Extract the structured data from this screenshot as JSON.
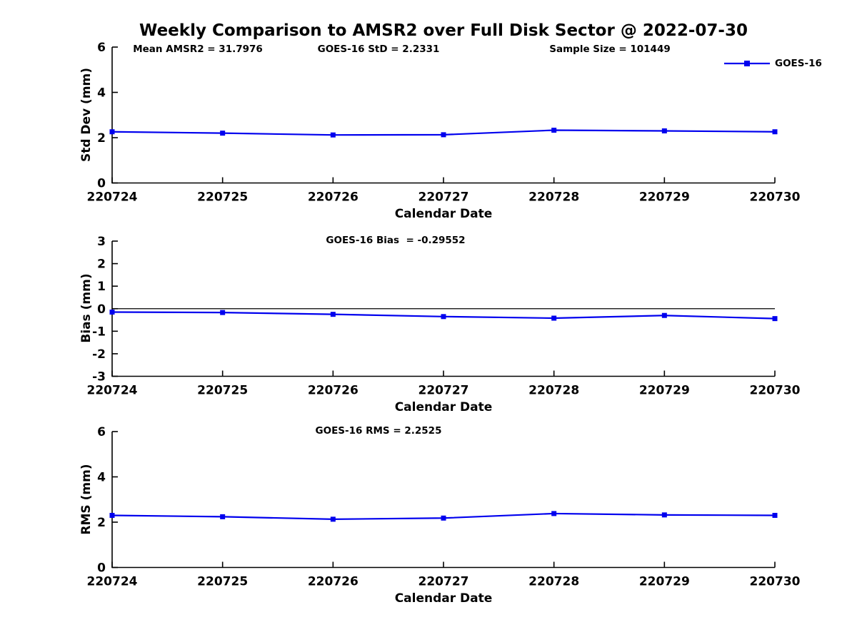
{
  "figure": {
    "title": "Weekly Comparison to AMSR2 over Full Disk Sector @ 2022-07-30"
  },
  "legend": {
    "label": "GOES-16"
  },
  "colors": {
    "series": "#0000EE",
    "axis": "#000000",
    "zero_line": "#000000",
    "text": "#000000",
    "background": "#FFFFFF"
  },
  "x_axis": {
    "label": "Calendar Date",
    "categories": [
      "220724",
      "220725",
      "220726",
      "220727",
      "220728",
      "220729",
      "220730"
    ]
  },
  "chart_data": [
    {
      "type": "line",
      "name": "std-dev",
      "ylabel": "Std Dev (mm)",
      "xlabel": "Calendar Date",
      "annotations": [
        "Mean AMSR2 = 31.7976",
        "GOES-16 StD = 2.2331",
        "Sample Size = 101449"
      ],
      "x": [
        "220724",
        "220725",
        "220726",
        "220727",
        "220728",
        "220729",
        "220730"
      ],
      "series": [
        {
          "name": "GOES-16",
          "values": [
            2.26,
            2.2,
            2.12,
            2.13,
            2.33,
            2.3,
            2.26
          ]
        }
      ],
      "ylim": [
        0,
        6
      ],
      "yticks": [
        0,
        2,
        4,
        6
      ],
      "zero_line": false,
      "grid": false,
      "legend_position": "top-right"
    },
    {
      "type": "line",
      "name": "bias",
      "ylabel": "Bias (mm)",
      "xlabel": "Calendar Date",
      "annotations": [
        "GOES-16 Bias  = -0.29552"
      ],
      "x": [
        "220724",
        "220725",
        "220726",
        "220727",
        "220728",
        "220729",
        "220730"
      ],
      "series": [
        {
          "name": "GOES-16",
          "values": [
            -0.15,
            -0.17,
            -0.25,
            -0.35,
            -0.42,
            -0.3,
            -0.44
          ]
        }
      ],
      "ylim": [
        -3,
        3
      ],
      "yticks": [
        -3,
        -2,
        -1,
        0,
        1,
        2,
        3
      ],
      "zero_line": true,
      "grid": false
    },
    {
      "type": "line",
      "name": "rms",
      "ylabel": "RMS (mm)",
      "xlabel": "Calendar Date",
      "annotations": [
        "GOES-16 RMS = 2.2525"
      ],
      "x": [
        "220724",
        "220725",
        "220726",
        "220727",
        "220728",
        "220729",
        "220730"
      ],
      "series": [
        {
          "name": "GOES-16",
          "values": [
            2.3,
            2.24,
            2.13,
            2.18,
            2.38,
            2.32,
            2.3
          ]
        }
      ],
      "ylim": [
        0,
        6
      ],
      "yticks": [
        0,
        2,
        4,
        6
      ],
      "zero_line": false,
      "grid": false
    }
  ]
}
